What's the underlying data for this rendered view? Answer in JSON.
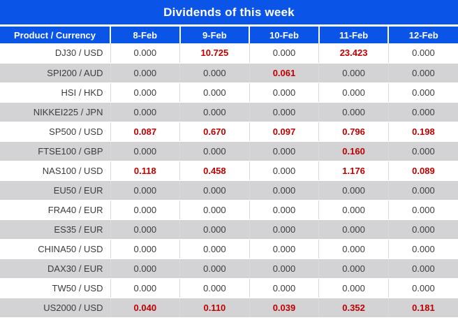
{
  "title": "Dividends of this week",
  "colors": {
    "accent_blue": "#0a55e8",
    "zebra_gray": "#d3d3d6",
    "grid_line": "#d9d9d9",
    "text_dark": "#3c3c3c",
    "value_red": "#c00000",
    "header_text": "#ffffff"
  },
  "table": {
    "columns": [
      "Product / Currency",
      "8-Feb",
      "9-Feb",
      "10-Feb",
      "11-Feb",
      "12-Feb"
    ],
    "rows": [
      {
        "product": "DJ30 / USD",
        "values": [
          "0.000",
          "10.725",
          "0.000",
          "23.423",
          "0.000"
        ],
        "red": [
          false,
          true,
          false,
          true,
          false
        ]
      },
      {
        "product": "SPI200 / AUD",
        "values": [
          "0.000",
          "0.000",
          "0.061",
          "0.000",
          "0.000"
        ],
        "red": [
          false,
          false,
          true,
          false,
          false
        ]
      },
      {
        "product": "HSI / HKD",
        "values": [
          "0.000",
          "0.000",
          "0.000",
          "0.000",
          "0.000"
        ],
        "red": [
          false,
          false,
          false,
          false,
          false
        ]
      },
      {
        "product": "NIKKEI225 / JPN",
        "values": [
          "0.000",
          "0.000",
          "0.000",
          "0.000",
          "0.000"
        ],
        "red": [
          false,
          false,
          false,
          false,
          false
        ]
      },
      {
        "product": "SP500 / USD",
        "values": [
          "0.087",
          "0.670",
          "0.097",
          "0.796",
          "0.198"
        ],
        "red": [
          true,
          true,
          true,
          true,
          true
        ]
      },
      {
        "product": "FTSE100 / GBP",
        "values": [
          "0.000",
          "0.000",
          "0.000",
          "0.160",
          "0.000"
        ],
        "red": [
          false,
          false,
          false,
          true,
          false
        ]
      },
      {
        "product": "NAS100 / USD",
        "values": [
          "0.118",
          "0.458",
          "0.000",
          "1.176",
          "0.089"
        ],
        "red": [
          true,
          true,
          false,
          true,
          true
        ]
      },
      {
        "product": "EU50 / EUR",
        "values": [
          "0.000",
          "0.000",
          "0.000",
          "0.000",
          "0.000"
        ],
        "red": [
          false,
          false,
          false,
          false,
          false
        ]
      },
      {
        "product": "FRA40 / EUR",
        "values": [
          "0.000",
          "0.000",
          "0.000",
          "0.000",
          "0.000"
        ],
        "red": [
          false,
          false,
          false,
          false,
          false
        ]
      },
      {
        "product": "ES35 / EUR",
        "values": [
          "0.000",
          "0.000",
          "0.000",
          "0.000",
          "0.000"
        ],
        "red": [
          false,
          false,
          false,
          false,
          false
        ]
      },
      {
        "product": "CHINA50 / USD",
        "values": [
          "0.000",
          "0.000",
          "0.000",
          "0.000",
          "0.000"
        ],
        "red": [
          false,
          false,
          false,
          false,
          false
        ]
      },
      {
        "product": "DAX30 / EUR",
        "values": [
          "0.000",
          "0.000",
          "0.000",
          "0.000",
          "0.000"
        ],
        "red": [
          false,
          false,
          false,
          false,
          false
        ]
      },
      {
        "product": "TW50 / USD",
        "values": [
          "0.000",
          "0.000",
          "0.000",
          "0.000",
          "0.000"
        ],
        "red": [
          false,
          false,
          false,
          false,
          false
        ]
      },
      {
        "product": "US2000 / USD",
        "values": [
          "0.040",
          "0.110",
          "0.039",
          "0.352",
          "0.181"
        ],
        "red": [
          true,
          true,
          true,
          true,
          true
        ]
      }
    ]
  }
}
